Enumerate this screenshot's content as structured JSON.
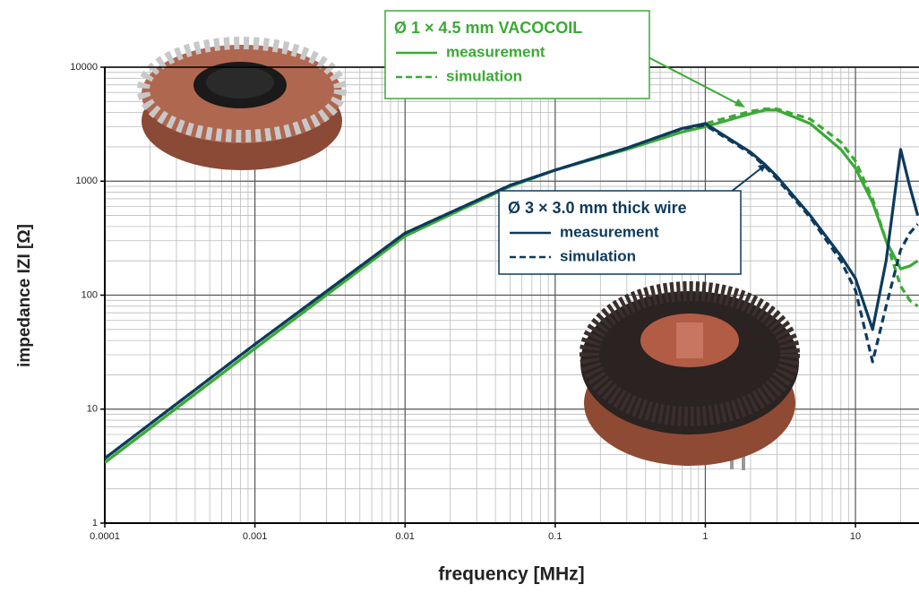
{
  "chart_data": {
    "type": "line",
    "x_label": "frequency [MHz]",
    "y_label": "impedance  IZI [Ω]",
    "x_log": true,
    "y_log": true,
    "grid": true,
    "xlim": [
      0.0001,
      26.5
    ],
    "ylim": [
      1,
      10000
    ],
    "xticks": [
      0.0001,
      0.001,
      0.01,
      0.1,
      1,
      10
    ],
    "yticks": [
      1,
      10,
      100,
      1000,
      10000
    ],
    "x": [
      0.0001,
      0.001,
      0.01,
      0.05,
      0.1,
      0.3,
      0.7,
      1,
      2,
      2.5,
      3,
      5,
      8,
      10,
      13,
      16,
      20,
      23,
      26
    ],
    "groups": [
      {
        "title": "Ø 1 × 4.5 mm VACOCOIL",
        "color": "#3aaa35",
        "series": [
          {
            "name": "measurement",
            "dashed": false,
            "values": [
              3.4,
              34,
              330,
              900,
              1250,
              1900,
              2700,
              3000,
              3900,
              4200,
              4200,
              3200,
              1900,
              1300,
              650,
              300,
              170,
              180,
              200
            ]
          },
          {
            "name": "simulation",
            "dashed": true,
            "values": [
              3.4,
              34,
              330,
              900,
              1250,
              1950,
              2800,
              3200,
              4100,
              4300,
              4300,
              3500,
              2200,
              1500,
              700,
              300,
              120,
              90,
              80
            ]
          }
        ]
      },
      {
        "title": "Ø 3 × 3.0 mm thick wire",
        "color": "#0d3a5c",
        "series": [
          {
            "name": "measurement",
            "dashed": false,
            "values": [
              3.7,
              37,
              350,
              920,
              1250,
              1950,
              2900,
              3200,
              1800,
              1400,
              1100,
              500,
              220,
              140,
              50,
              200,
              1900,
              900,
              500
            ]
          },
          {
            "name": "simulation",
            "dashed": true,
            "values": [
              3.7,
              37,
              350,
              920,
              1250,
              1950,
              2900,
              3100,
              1750,
              1350,
              1050,
              480,
              200,
              110,
              26,
              80,
              250,
              350,
              420
            ]
          }
        ]
      }
    ]
  }
}
